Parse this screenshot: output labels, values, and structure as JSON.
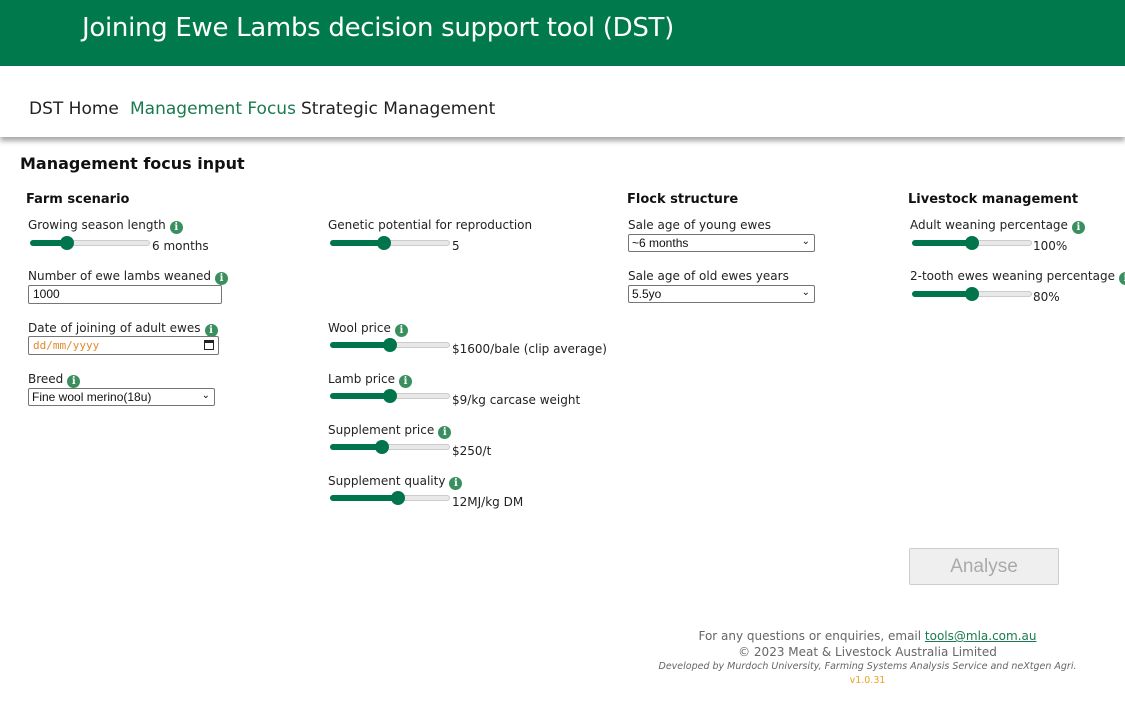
{
  "header": {
    "title": "Joining Ewe Lambs decision support tool (DST)"
  },
  "nav": {
    "items": [
      {
        "label": "DST Home"
      },
      {
        "label": "Management Focus"
      },
      {
        "label": "Strategic Management"
      }
    ],
    "active": "Management Focus"
  },
  "page_title": "Management focus input",
  "sections": {
    "farm": "Farm scenario",
    "flock": "Flock structure",
    "livestock": "Livestock management"
  },
  "info_glyph": "i",
  "fields": {
    "growing_season": {
      "label": "Growing season length",
      "value": "6 months",
      "fraction": 0.31
    },
    "genetic": {
      "label": "Genetic potential for reproduction",
      "value": "5",
      "fraction": 0.45
    },
    "ewe_lambs": {
      "label": "Number of ewe lambs weaned",
      "value": "1000"
    },
    "date_joining": {
      "label": "Date of joining of adult ewes",
      "placeholder": "dd/mm/yyyy"
    },
    "breed": {
      "label": "Breed",
      "value": "Fine wool merino(18u)"
    },
    "wool_price": {
      "label": "Wool price",
      "value": "$1600/bale (clip average)",
      "fraction": 0.5
    },
    "lamb_price": {
      "label": "Lamb price",
      "value": "$9/kg carcase weight",
      "fraction": 0.5
    },
    "supp_price": {
      "label": "Supplement price",
      "value": "$250/t",
      "fraction": 0.43
    },
    "supp_quality": {
      "label": "Supplement quality",
      "value": "12MJ/kg DM",
      "fraction": 0.57
    },
    "sale_young": {
      "label": "Sale age of young ewes",
      "value": "~6 months"
    },
    "sale_old": {
      "label": "Sale age of old ewes years",
      "value": "5.5yo"
    },
    "adult_weaning": {
      "label": "Adult weaning percentage",
      "value": "100%",
      "fraction": 0.5
    },
    "tooth_weaning": {
      "label": "2-tooth ewes weaning percentage",
      "value": "80%",
      "fraction": 0.5
    }
  },
  "analyse_label": "Analyse",
  "footer": {
    "enquiry": "For any questions or enquiries, email ",
    "email": "tools@mla.com.au",
    "copyright": "© 2023 Meat & Livestock Australia Limited",
    "developed": "Developed by Murdoch University, Farming Systems Analysis Service and neXtgen Agri.",
    "version": "v1.0.31"
  }
}
